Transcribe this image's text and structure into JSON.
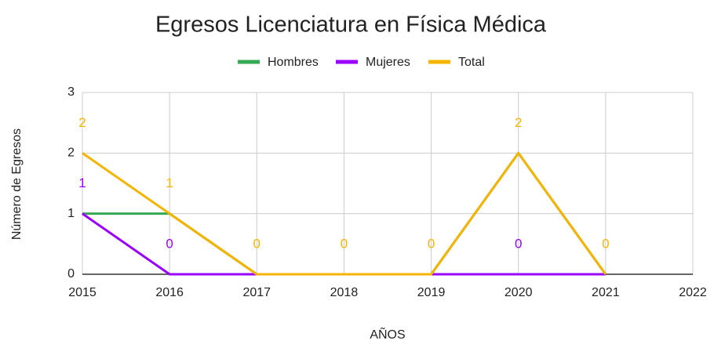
{
  "chart_data": {
    "type": "line",
    "title": "Egresos Licenciatura en Física Médica",
    "x_label": "AÑOS",
    "y_label": "Número de Egresos",
    "x": [
      2015,
      2016,
      2017,
      2018,
      2019,
      2020,
      2021
    ],
    "series": [
      {
        "name": "Hombres",
        "color": "#34a853",
        "values": [
          1,
          1,
          0,
          0,
          0,
          2,
          0
        ],
        "value_labels": [
          null,
          null,
          null,
          null,
          null,
          null,
          null
        ]
      },
      {
        "name": "Mujeres",
        "color": "#9900ff",
        "values": [
          1,
          0,
          0,
          0,
          0,
          0,
          0
        ],
        "value_labels": [
          "1",
          "0",
          null,
          null,
          null,
          "0",
          null
        ]
      },
      {
        "name": "Total",
        "color": "#f4b400",
        "values": [
          2,
          1,
          0,
          0,
          0,
          2,
          0
        ],
        "value_labels": [
          "2",
          "1",
          "0",
          "0",
          "0",
          "2",
          "0"
        ]
      }
    ],
    "xlim": [
      2015,
      2022
    ],
    "xticks": [
      2015,
      2016,
      2017,
      2018,
      2019,
      2020,
      2021,
      2022
    ],
    "ylim": [
      0,
      3
    ],
    "yticks": [
      0,
      1,
      2,
      3
    ],
    "grid": true,
    "legend": "top"
  }
}
